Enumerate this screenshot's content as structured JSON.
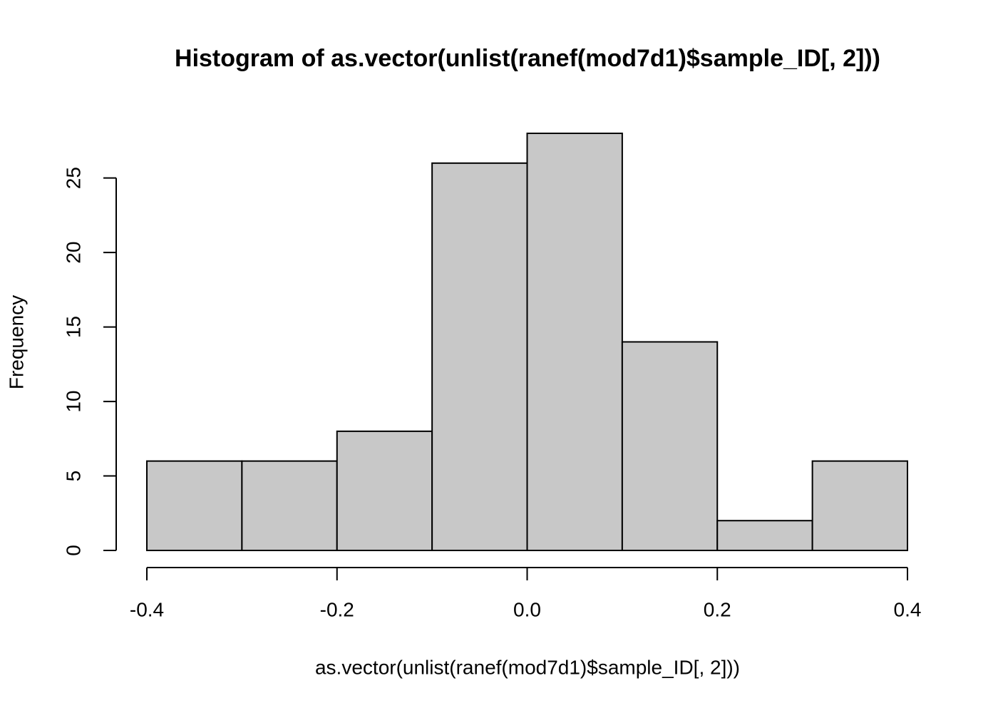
{
  "chart_data": {
    "type": "histogram",
    "title": "Histogram of as.vector(unlist(ranef(mod7d1)$sample_ID[, 2]))",
    "x_label": "as.vector(unlist(ranef(mod7d1)$sample_ID[, 2]))",
    "y_label": "Frequency",
    "bins": [
      -0.4,
      -0.3,
      -0.2,
      -0.1,
      0,
      0.1,
      0.2,
      0.3,
      0.4
    ],
    "values": [
      6,
      6,
      8,
      26,
      28,
      14,
      2,
      6
    ],
    "color": "#c8c8c8",
    "xlim": [
      -0.4,
      0.4
    ],
    "xticks": [
      -0.4,
      -0.2,
      {
        "value": 0,
        "label": "0.0"
      },
      0.2,
      0.4
    ],
    "ylim": [
      0,
      28
    ],
    "yticks": [
      0,
      5,
      10,
      15,
      20,
      25
    ]
  }
}
